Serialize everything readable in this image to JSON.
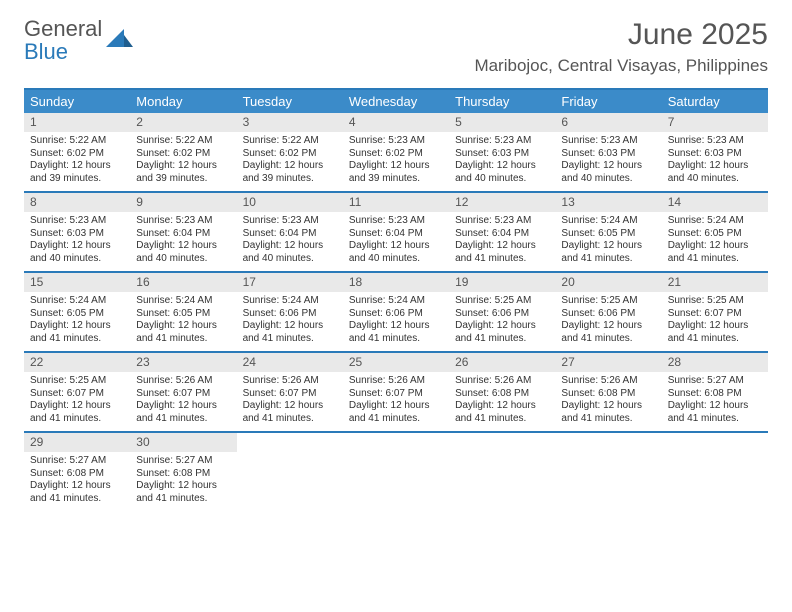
{
  "logo": {
    "text1": "General",
    "text2": "Blue"
  },
  "title": "June 2025",
  "location": "Maribojoc, Central Visayas, Philippines",
  "colors": {
    "header_bg": "#3b8bc9",
    "header_border": "#2a7ab9",
    "daynum_bg": "#e9e9e9",
    "text": "#555555"
  },
  "day_names": [
    "Sunday",
    "Monday",
    "Tuesday",
    "Wednesday",
    "Thursday",
    "Friday",
    "Saturday"
  ],
  "weeks": [
    [
      {
        "n": "1",
        "sr": "Sunrise: 5:22 AM",
        "ss": "Sunset: 6:02 PM",
        "d1": "Daylight: 12 hours",
        "d2": "and 39 minutes."
      },
      {
        "n": "2",
        "sr": "Sunrise: 5:22 AM",
        "ss": "Sunset: 6:02 PM",
        "d1": "Daylight: 12 hours",
        "d2": "and 39 minutes."
      },
      {
        "n": "3",
        "sr": "Sunrise: 5:22 AM",
        "ss": "Sunset: 6:02 PM",
        "d1": "Daylight: 12 hours",
        "d2": "and 39 minutes."
      },
      {
        "n": "4",
        "sr": "Sunrise: 5:23 AM",
        "ss": "Sunset: 6:02 PM",
        "d1": "Daylight: 12 hours",
        "d2": "and 39 minutes."
      },
      {
        "n": "5",
        "sr": "Sunrise: 5:23 AM",
        "ss": "Sunset: 6:03 PM",
        "d1": "Daylight: 12 hours",
        "d2": "and 40 minutes."
      },
      {
        "n": "6",
        "sr": "Sunrise: 5:23 AM",
        "ss": "Sunset: 6:03 PM",
        "d1": "Daylight: 12 hours",
        "d2": "and 40 minutes."
      },
      {
        "n": "7",
        "sr": "Sunrise: 5:23 AM",
        "ss": "Sunset: 6:03 PM",
        "d1": "Daylight: 12 hours",
        "d2": "and 40 minutes."
      }
    ],
    [
      {
        "n": "8",
        "sr": "Sunrise: 5:23 AM",
        "ss": "Sunset: 6:03 PM",
        "d1": "Daylight: 12 hours",
        "d2": "and 40 minutes."
      },
      {
        "n": "9",
        "sr": "Sunrise: 5:23 AM",
        "ss": "Sunset: 6:04 PM",
        "d1": "Daylight: 12 hours",
        "d2": "and 40 minutes."
      },
      {
        "n": "10",
        "sr": "Sunrise: 5:23 AM",
        "ss": "Sunset: 6:04 PM",
        "d1": "Daylight: 12 hours",
        "d2": "and 40 minutes."
      },
      {
        "n": "11",
        "sr": "Sunrise: 5:23 AM",
        "ss": "Sunset: 6:04 PM",
        "d1": "Daylight: 12 hours",
        "d2": "and 40 minutes."
      },
      {
        "n": "12",
        "sr": "Sunrise: 5:23 AM",
        "ss": "Sunset: 6:04 PM",
        "d1": "Daylight: 12 hours",
        "d2": "and 41 minutes."
      },
      {
        "n": "13",
        "sr": "Sunrise: 5:24 AM",
        "ss": "Sunset: 6:05 PM",
        "d1": "Daylight: 12 hours",
        "d2": "and 41 minutes."
      },
      {
        "n": "14",
        "sr": "Sunrise: 5:24 AM",
        "ss": "Sunset: 6:05 PM",
        "d1": "Daylight: 12 hours",
        "d2": "and 41 minutes."
      }
    ],
    [
      {
        "n": "15",
        "sr": "Sunrise: 5:24 AM",
        "ss": "Sunset: 6:05 PM",
        "d1": "Daylight: 12 hours",
        "d2": "and 41 minutes."
      },
      {
        "n": "16",
        "sr": "Sunrise: 5:24 AM",
        "ss": "Sunset: 6:05 PM",
        "d1": "Daylight: 12 hours",
        "d2": "and 41 minutes."
      },
      {
        "n": "17",
        "sr": "Sunrise: 5:24 AM",
        "ss": "Sunset: 6:06 PM",
        "d1": "Daylight: 12 hours",
        "d2": "and 41 minutes."
      },
      {
        "n": "18",
        "sr": "Sunrise: 5:24 AM",
        "ss": "Sunset: 6:06 PM",
        "d1": "Daylight: 12 hours",
        "d2": "and 41 minutes."
      },
      {
        "n": "19",
        "sr": "Sunrise: 5:25 AM",
        "ss": "Sunset: 6:06 PM",
        "d1": "Daylight: 12 hours",
        "d2": "and 41 minutes."
      },
      {
        "n": "20",
        "sr": "Sunrise: 5:25 AM",
        "ss": "Sunset: 6:06 PM",
        "d1": "Daylight: 12 hours",
        "d2": "and 41 minutes."
      },
      {
        "n": "21",
        "sr": "Sunrise: 5:25 AM",
        "ss": "Sunset: 6:07 PM",
        "d1": "Daylight: 12 hours",
        "d2": "and 41 minutes."
      }
    ],
    [
      {
        "n": "22",
        "sr": "Sunrise: 5:25 AM",
        "ss": "Sunset: 6:07 PM",
        "d1": "Daylight: 12 hours",
        "d2": "and 41 minutes."
      },
      {
        "n": "23",
        "sr": "Sunrise: 5:26 AM",
        "ss": "Sunset: 6:07 PM",
        "d1": "Daylight: 12 hours",
        "d2": "and 41 minutes."
      },
      {
        "n": "24",
        "sr": "Sunrise: 5:26 AM",
        "ss": "Sunset: 6:07 PM",
        "d1": "Daylight: 12 hours",
        "d2": "and 41 minutes."
      },
      {
        "n": "25",
        "sr": "Sunrise: 5:26 AM",
        "ss": "Sunset: 6:07 PM",
        "d1": "Daylight: 12 hours",
        "d2": "and 41 minutes."
      },
      {
        "n": "26",
        "sr": "Sunrise: 5:26 AM",
        "ss": "Sunset: 6:08 PM",
        "d1": "Daylight: 12 hours",
        "d2": "and 41 minutes."
      },
      {
        "n": "27",
        "sr": "Sunrise: 5:26 AM",
        "ss": "Sunset: 6:08 PM",
        "d1": "Daylight: 12 hours",
        "d2": "and 41 minutes."
      },
      {
        "n": "28",
        "sr": "Sunrise: 5:27 AM",
        "ss": "Sunset: 6:08 PM",
        "d1": "Daylight: 12 hours",
        "d2": "and 41 minutes."
      }
    ],
    [
      {
        "n": "29",
        "sr": "Sunrise: 5:27 AM",
        "ss": "Sunset: 6:08 PM",
        "d1": "Daylight: 12 hours",
        "d2": "and 41 minutes."
      },
      {
        "n": "30",
        "sr": "Sunrise: 5:27 AM",
        "ss": "Sunset: 6:08 PM",
        "d1": "Daylight: 12 hours",
        "d2": "and 41 minutes."
      },
      null,
      null,
      null,
      null,
      null
    ]
  ]
}
